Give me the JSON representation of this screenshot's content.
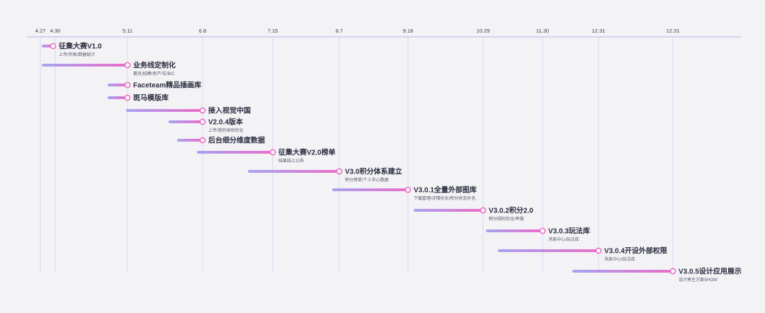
{
  "chart_data": {
    "type": "timeline",
    "colors": {
      "background": "#f3f3f6",
      "axis": "#b9b6ec",
      "gridline": "#d8d5f4",
      "bar_start": "#a7a3f1",
      "bar_end": "#ea6dc8",
      "marker_stroke": "#ea6dc8",
      "title_text": "#2a2c3e",
      "subtitle_text": "#55576a"
    },
    "ticks": [
      "4.27",
      "4.30",
      "5.11",
      "6.8",
      "7.15",
      "8.7",
      "9.18",
      "10.29",
      "11.30",
      "12.31",
      "12.31"
    ],
    "milestones": [
      {
        "title": "征集大赛V1.0",
        "subtitle": "上传/列表/数据统计",
        "start": "4.27",
        "end": "4.30"
      },
      {
        "title": "业务线定制化",
        "subtitle": "赛页/招聘/房产/车/BIC",
        "start": "4.27",
        "end": "5.11"
      },
      {
        "title": "Faceteam精品插画库",
        "subtitle": "",
        "start": "~5.4",
        "end": "5.11"
      },
      {
        "title": "斑马模版库",
        "subtitle": "",
        "start": "~5.4",
        "end": "5.11"
      },
      {
        "title": "接入视觉中国",
        "subtitle": "",
        "start": "5.11",
        "end": "6.8"
      },
      {
        "title": "V2.0.4版本",
        "subtitle": "上传/我的体验优化",
        "start": "~5.27",
        "end": "6.8"
      },
      {
        "title": "后台细分维度数据",
        "subtitle": "",
        "start": "~5.31",
        "end": "6.8"
      },
      {
        "title": "征集大赛V2.0榜单",
        "subtitle": "结果线上公布",
        "start": "6.8",
        "end": "7.15"
      },
      {
        "title": "V3.0积分体系建立",
        "subtitle": "积分榜单/个人中心数据",
        "start": "~7.1",
        "end": "8.7"
      },
      {
        "title": "V3.0.1全量外部图库",
        "subtitle": "下载管理/详情优化/积分状态补充",
        "start": "~8.2",
        "end": "9.18"
      },
      {
        "title": "V3.0.2积分2.0",
        "subtitle": "积分规则优化/举报",
        "start": "~9.20",
        "end": "10.29"
      },
      {
        "title": "V3.0.3玩法库",
        "subtitle": "消息中心/玩法库",
        "start": "~10.29",
        "end": "11.30"
      },
      {
        "title": "V3.0.4开设外部权限",
        "subtitle": "消息中心/玩法库",
        "start": "~11.4",
        "end": "12.31"
      },
      {
        "title": "V3.0.5设计应用展示",
        "subtitle": "设计再生方案SHOW",
        "start": "~12.1",
        "end": "12.31"
      }
    ]
  }
}
